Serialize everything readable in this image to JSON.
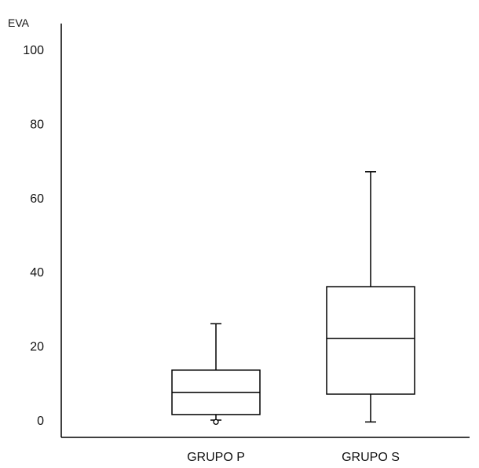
{
  "chart_data": {
    "type": "boxplot",
    "title": "",
    "xlabel": "",
    "ylabel": "EVA",
    "ylim": [
      0,
      100
    ],
    "yticks": [
      0,
      20,
      40,
      60,
      80,
      100
    ],
    "grid": false,
    "categories": [
      "GRUPO P",
      "GRUPO S"
    ],
    "boxes": [
      {
        "category": "GRUPO P",
        "whisker_low": 0,
        "q1": 1.5,
        "median": 7.5,
        "q3": 13.5,
        "whisker_high": 26,
        "outliers": [
          -0.5
        ]
      },
      {
        "category": "GRUPO S",
        "whisker_low": -0.5,
        "q1": 7,
        "median": 22,
        "q3": 36,
        "whisker_high": 67,
        "outliers": []
      }
    ]
  }
}
